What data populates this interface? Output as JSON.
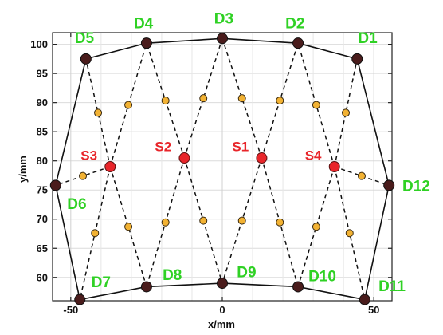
{
  "chart_data": {
    "type": "scatter",
    "title": "",
    "xlabel": "x/mm",
    "ylabel": "y/mm",
    "xlim": [
      -56,
      56
    ],
    "ylim": [
      56,
      102
    ],
    "x_ticks": [
      -50,
      0,
      50
    ],
    "y_ticks": [
      60,
      65,
      70,
      75,
      80,
      85,
      90,
      95,
      100
    ],
    "grid": true,
    "colors": {
      "detector": "#4a1c1c",
      "source": "#e8252a",
      "midpoint": "#f2b233",
      "d_label": "#2fd124",
      "s_label": "#e8252a",
      "line": "#111111"
    },
    "detectors": [
      {
        "label": "D1",
        "x": 44.5,
        "y": 97.5,
        "lx": 48,
        "ly": 101.2
      },
      {
        "label": "D2",
        "x": 25,
        "y": 100.2,
        "lx": 24,
        "ly": 103.7
      },
      {
        "label": "D3",
        "x": 0,
        "y": 101,
        "lx": 0.5,
        "ly": 104.5
      },
      {
        "label": "D4",
        "x": -25,
        "y": 100.2,
        "lx": -26,
        "ly": 103.7
      },
      {
        "label": "D5",
        "x": -45,
        "y": 97.5,
        "lx": -45.5,
        "ly": 101.2
      },
      {
        "label": "D6",
        "x": -55,
        "y": 75.8,
        "lx": -48,
        "ly": 72.7
      },
      {
        "label": "D7",
        "x": -47,
        "y": 56.2,
        "lx": -40,
        "ly": 59.3
      },
      {
        "label": "D8",
        "x": -25,
        "y": 58.4,
        "lx": -16.5,
        "ly": 60.5
      },
      {
        "label": "D9",
        "x": 0,
        "y": 59,
        "lx": 8,
        "ly": 61
      },
      {
        "label": "D10",
        "x": 25,
        "y": 58.4,
        "lx": 33,
        "ly": 60.3
      },
      {
        "label": "D11",
        "x": 47,
        "y": 56.2,
        "lx": 56,
        "ly": 58.6
      },
      {
        "label": "D12",
        "x": 55,
        "y": 75.8,
        "lx": 64,
        "ly": 75.8
      }
    ],
    "sources": [
      {
        "label": "S1",
        "x": 13,
        "y": 80.5,
        "lx": 6,
        "ly": 82.5
      },
      {
        "label": "S2",
        "x": -12.5,
        "y": 80.5,
        "lx": -19.5,
        "ly": 82.5
      },
      {
        "label": "S3",
        "x": -37,
        "y": 79,
        "lx": -44,
        "ly": 81
      },
      {
        "label": "S4",
        "x": 37,
        "y": 79,
        "lx": 30,
        "ly": 81
      }
    ],
    "source_detector_pairs": [
      [
        "S1",
        "D2"
      ],
      [
        "S1",
        "D3"
      ],
      [
        "S1",
        "D9"
      ],
      [
        "S1",
        "D10"
      ],
      [
        "S2",
        "D3"
      ],
      [
        "S2",
        "D4"
      ],
      [
        "S2",
        "D8"
      ],
      [
        "S2",
        "D9"
      ],
      [
        "S3",
        "D4"
      ],
      [
        "S3",
        "D5"
      ],
      [
        "S3",
        "D6"
      ],
      [
        "S3",
        "D7"
      ],
      [
        "S3",
        "D8"
      ],
      [
        "S4",
        "D1"
      ],
      [
        "S4",
        "D2"
      ],
      [
        "S4",
        "D10"
      ],
      [
        "S4",
        "D11"
      ],
      [
        "S4",
        "D12"
      ]
    ],
    "outline": [
      "D5",
      "D4",
      "D3",
      "D2",
      "D1",
      "D12",
      "D11",
      "D10",
      "D9",
      "D8",
      "D7",
      "D6",
      "D5"
    ]
  }
}
